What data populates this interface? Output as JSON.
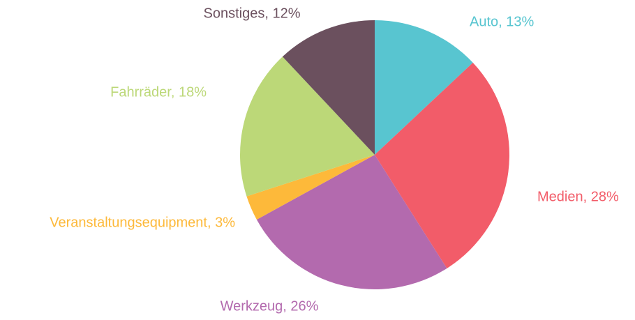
{
  "chart_data": {
    "type": "pie",
    "values": [
      13,
      28,
      26,
      3,
      18,
      12
    ],
    "value_labels": [
      "Auto, 13%",
      "Medien, 28%",
      "Werkzeug, 26%",
      "Veranstaltungsequipment, 3%",
      "Fahrräder, 18%",
      "Sonstiges, 12%"
    ],
    "colors": [
      "#58c5d0",
      "#f25c69",
      "#b36aae",
      "#fdb93a",
      "#bcd878",
      "#6b505e"
    ]
  }
}
